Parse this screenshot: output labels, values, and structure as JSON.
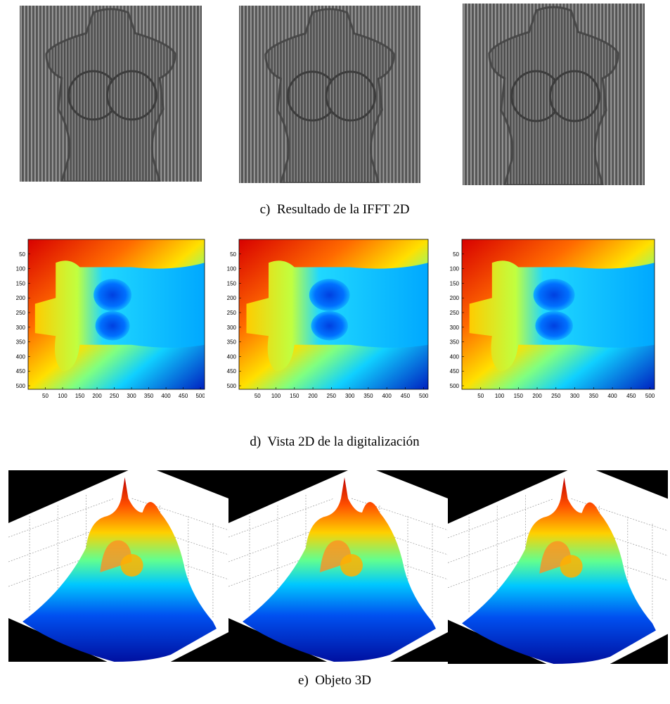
{
  "row_c": {
    "caption": "c)  Resultado de la IFFT 2D"
  },
  "row_d": {
    "caption": "d)  Vista 2D de la digitalización",
    "xlim": [
      0,
      512
    ],
    "ylim": [
      0,
      512
    ],
    "xticks": [
      50,
      100,
      150,
      200,
      250,
      300,
      350,
      400,
      450,
      500
    ],
    "yticks": [
      50,
      100,
      150,
      200,
      250,
      300,
      350,
      400,
      450,
      500
    ]
  },
  "row_e": {
    "caption": "e)  Objeto 3D"
  }
}
